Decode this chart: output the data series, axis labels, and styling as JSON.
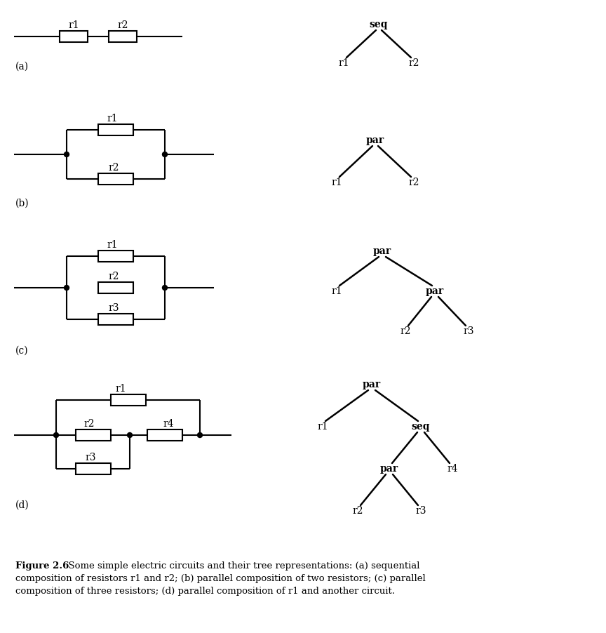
{
  "bg_color": "#ffffff",
  "text_color": "#000000",
  "line_color": "#000000",
  "font_family": "DejaVu Serif",
  "label_fontsize": 10,
  "caption_bold": "Figure 2.6",
  "caption_rest1": "  Some simple electric circuits and their tree representations: (a) sequential",
  "caption_line2": "composition of resistors r1 and r2; (b) parallel composition of two resistors; (c) parallel",
  "caption_line3": "composition of three resistors; (d) parallel composition of r1 and another circuit.",
  "section_labels": [
    "(a)",
    "(b)",
    "(c)",
    "(d)"
  ]
}
